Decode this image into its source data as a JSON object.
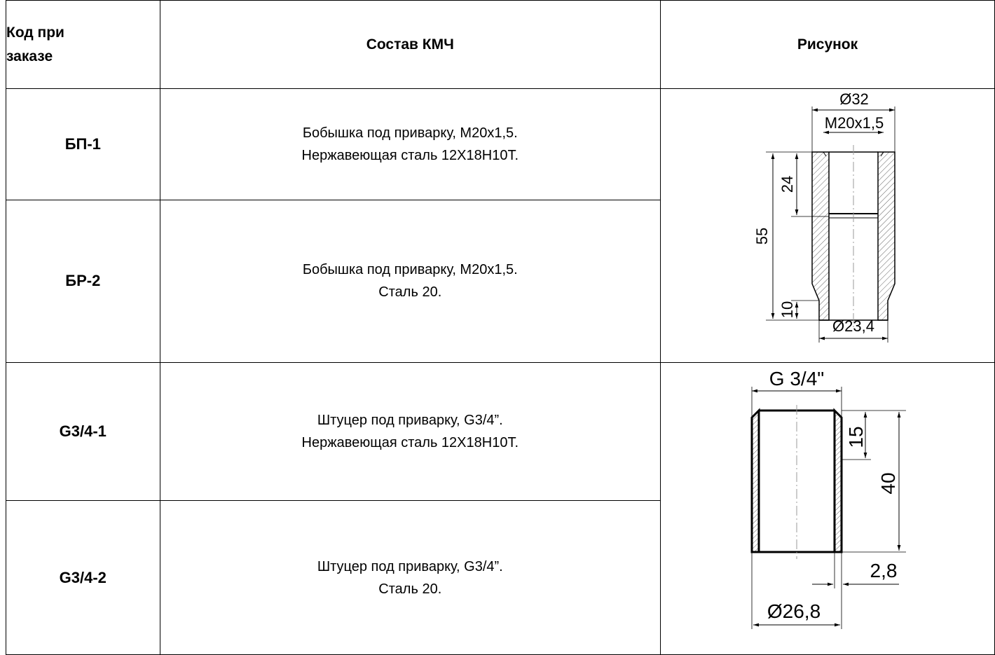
{
  "table": {
    "headers": {
      "code": [
        "Код при",
        "заказе"
      ],
      "composition": "Состав КМЧ",
      "drawing": "Рисунок"
    },
    "rows": [
      {
        "code": "БП-1",
        "description": [
          "Бобышка под приварку, М20х1,5.",
          "Нержавеющая сталь 12Х18Н10Т."
        ]
      },
      {
        "code": "БР-2",
        "description": [
          "Бобышка под приварку, М20х1,5.",
          "Сталь 20."
        ]
      },
      {
        "code": "G3/4-1",
        "description": [
          "Штуцер под приварку, G3/4”.",
          "Нержавеющая сталь 12Х18Н10Т."
        ]
      },
      {
        "code": "G3/4-2",
        "description": [
          "Штуцер под приварку, G3/4”.",
          "Сталь 20."
        ]
      }
    ]
  },
  "drawings": {
    "boss": {
      "outer_diameter": "Ø32",
      "thread": "M20x1,5",
      "height_total": "55",
      "height_thread": "24",
      "height_bottom": "10",
      "bottom_diameter": "Ø23,4"
    },
    "fitting": {
      "thread": "G 3/4\"",
      "thread_length": "15",
      "length_total": "40",
      "wall": "2,8",
      "outer_diameter": "Ø26,8"
    }
  }
}
